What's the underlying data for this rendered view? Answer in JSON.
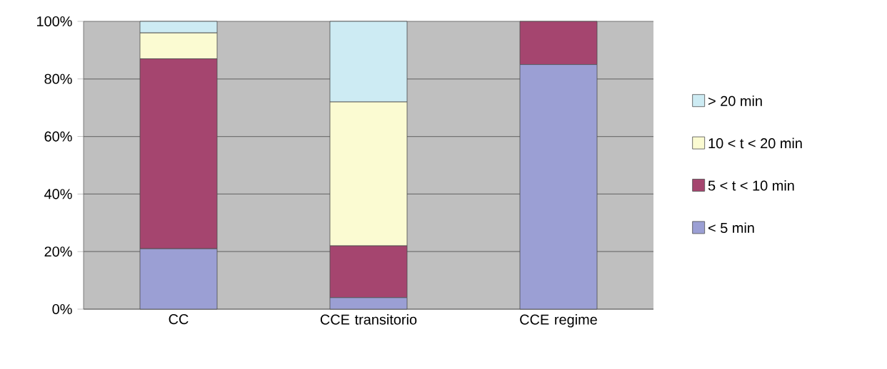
{
  "chart_data": {
    "type": "bar",
    "stacked": true,
    "categories": [
      "CC",
      "CCE transitorio",
      "CCE regime"
    ],
    "series": [
      {
        "name": "< 5 min",
        "color": "#9b9fd4",
        "values": [
          21,
          4,
          85
        ]
      },
      {
        "name": "5 < t < 10 min",
        "color": "#a5456f",
        "values": [
          66,
          18,
          15
        ]
      },
      {
        "name": "10 < t < 20 min",
        "color": "#fbfbd2",
        "values": [
          9,
          50,
          null
        ]
      },
      {
        "name": "> 20 min",
        "color": "#cdebf3",
        "values": [
          4,
          28,
          null
        ]
      }
    ],
    "ylim": [
      0,
      100
    ],
    "yticks": [
      {
        "value": 0,
        "label": "0%"
      },
      {
        "value": 20,
        "label": "20%"
      },
      {
        "value": 40,
        "label": "40%"
      },
      {
        "value": 60,
        "label": "60%"
      },
      {
        "value": 80,
        "label": "80%"
      },
      {
        "value": 100,
        "label": "100%"
      }
    ],
    "grid": "y",
    "legend": "right"
  }
}
